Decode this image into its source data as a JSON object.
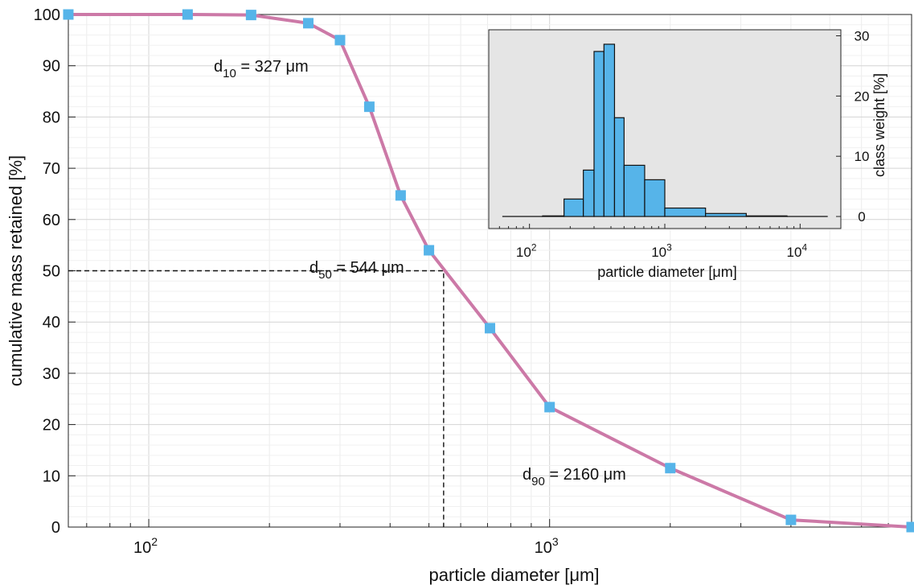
{
  "chart_data": [
    {
      "type": "line",
      "xscale": "log",
      "xlim": [
        63,
        8000
      ],
      "ylim": [
        0,
        100
      ],
      "xlabel": "particle diameter [μm]",
      "ylabel": "cumulative mass retained [%]",
      "x_ticks": [
        {
          "base": "10",
          "exp": "2",
          "value": 100
        },
        {
          "base": "10",
          "exp": "3",
          "value": 1000
        }
      ],
      "y_ticks": [
        0,
        10,
        20,
        30,
        40,
        50,
        60,
        70,
        80,
        90,
        100
      ],
      "grid": true,
      "series": [
        {
          "color": "#cc79a7",
          "marker_color": "#56b4e9",
          "points": [
            {
              "x": 63,
              "y": 100
            },
            {
              "x": 125,
              "y": 100
            },
            {
              "x": 180,
              "y": 99.9
            },
            {
              "x": 250,
              "y": 98.3
            },
            {
              "x": 300,
              "y": 95
            },
            {
              "x": 355,
              "y": 82
            },
            {
              "x": 425,
              "y": 64.7
            },
            {
              "x": 500,
              "y": 54
            },
            {
              "x": 710,
              "y": 38.8
            },
            {
              "x": 1000,
              "y": 23.4
            },
            {
              "x": 2000,
              "y": 11.5
            },
            {
              "x": 4000,
              "y": 1.4
            },
            {
              "x": 8000,
              "y": 0
            }
          ]
        }
      ],
      "reference_lines": {
        "d50_x": 544,
        "d50_y": 50
      },
      "annotations": [
        {
          "name": "d10",
          "sub": "10",
          "text": " = 327 μm"
        },
        {
          "name": "d50",
          "sub": "50",
          "text": " = 544 μm"
        },
        {
          "name": "d90",
          "sub": "90",
          "text": " = 2160 μm"
        }
      ]
    },
    {
      "type": "bar",
      "xscale": "log",
      "xlim": [
        50,
        20000
      ],
      "ylim": [
        -2,
        31
      ],
      "xlabel": "particle diameter [μm]",
      "ylabel": "class weight [%]",
      "y_axis_position": "right",
      "x_ticks": [
        {
          "base": "10",
          "exp": "2",
          "value": 100
        },
        {
          "base": "10",
          "exp": "3",
          "value": 1000
        },
        {
          "base": "10",
          "exp": "4",
          "value": 10000
        }
      ],
      "y_ticks": [
        0,
        10,
        20,
        30
      ],
      "grid": false,
      "background": "#e5e5e5",
      "bar_color": "#56b4e9",
      "bins": [
        {
          "from": 63,
          "to": 125,
          "value": 0
        },
        {
          "from": 125,
          "to": 180,
          "value": 0.1
        },
        {
          "from": 180,
          "to": 250,
          "value": 2.9
        },
        {
          "from": 250,
          "to": 300,
          "value": 7.7
        },
        {
          "from": 300,
          "to": 355,
          "value": 27.4
        },
        {
          "from": 355,
          "to": 425,
          "value": 28.6
        },
        {
          "from": 425,
          "to": 500,
          "value": 16.4
        },
        {
          "from": 500,
          "to": 710,
          "value": 8.5
        },
        {
          "from": 710,
          "to": 1000,
          "value": 6.1
        },
        {
          "from": 1000,
          "to": 2000,
          "value": 1.4
        },
        {
          "from": 2000,
          "to": 4000,
          "value": 0.5
        },
        {
          "from": 4000,
          "to": 8000,
          "value": 0.1
        },
        {
          "from": 8000,
          "to": 16000,
          "value": 0
        }
      ]
    }
  ]
}
